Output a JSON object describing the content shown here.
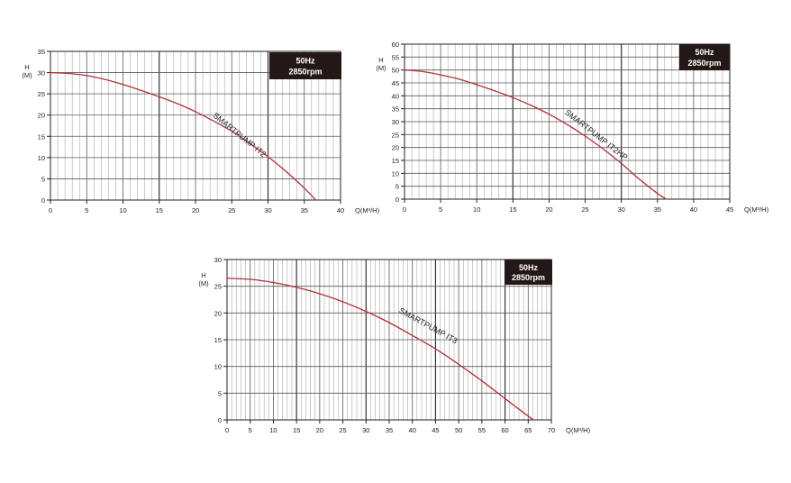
{
  "chart_data": [
    {
      "type": "line",
      "ylabel_line1": "H",
      "ylabel_line2": "(M)",
      "xlabel": "Q(M³/H)",
      "xlim": [
        0,
        40
      ],
      "ylim": [
        0,
        35
      ],
      "xticks": [
        0,
        5,
        10,
        15,
        20,
        25,
        30,
        35,
        40
      ],
      "yticks": [
        0,
        5,
        10,
        15,
        20,
        25,
        30,
        35
      ],
      "badge_line1": "50Hz",
      "badge_line2": "2850rpm",
      "curve_label": "SMARTPUMP IT2",
      "grid": true,
      "series": [
        {
          "x": [
            0,
            2.5,
            5,
            7.5,
            10,
            12.5,
            15,
            17.5,
            20,
            22.5,
            25,
            27.5,
            30,
            32.5,
            35,
            36.6
          ],
          "y": [
            30,
            29.8,
            29.3,
            28.4,
            27.2,
            25.8,
            24.3,
            22.7,
            20.8,
            18.6,
            16.2,
            13.3,
            10.2,
            6.7,
            2.8,
            0
          ]
        }
      ]
    },
    {
      "type": "line",
      "ylabel_line1": "H",
      "ylabel_line2": "(M)",
      "xlabel": "Q(M³/H)",
      "xlim": [
        0,
        45
      ],
      "ylim": [
        0,
        60
      ],
      "xticks": [
        0,
        5,
        10,
        15,
        20,
        25,
        30,
        35,
        40,
        45
      ],
      "yticks": [
        0,
        5,
        10,
        15,
        20,
        25,
        30,
        35,
        40,
        45,
        50,
        55,
        60
      ],
      "badge_line1": "50Hz",
      "badge_line2": "2850rpm",
      "curve_label": "SMARTPUMP IT2HP",
      "grid": true,
      "series": [
        {
          "x": [
            0,
            2.5,
            5,
            7.5,
            10,
            12.5,
            15,
            17.5,
            20,
            22.5,
            25,
            27.5,
            30,
            32.5,
            35,
            36.2
          ],
          "y": [
            50,
            49.4,
            48.1,
            46.5,
            44.3,
            41.9,
            39.3,
            36.3,
            32.9,
            28.9,
            24.4,
            19.4,
            13.8,
            7.7,
            2.2,
            0
          ]
        }
      ]
    },
    {
      "type": "line",
      "ylabel_line1": "H",
      "ylabel_line2": "(M)",
      "xlabel": "Q(M³/H)",
      "xlim": [
        0,
        70
      ],
      "ylim": [
        0,
        30
      ],
      "xticks": [
        0,
        5,
        10,
        15,
        20,
        25,
        30,
        35,
        40,
        45,
        50,
        55,
        60,
        65,
        70
      ],
      "yticks": [
        0,
        5,
        10,
        15,
        20,
        25,
        30
      ],
      "badge_line1": "50Hz",
      "badge_line2": "2850rpm",
      "curve_label": "SMARTPUMP IT3",
      "grid": true,
      "series": [
        {
          "x": [
            0,
            5,
            10,
            15,
            20,
            25,
            30,
            35,
            40,
            45,
            50,
            55,
            60,
            65,
            66.2
          ],
          "y": [
            26.5,
            26.3,
            25.7,
            24.8,
            23.6,
            22.1,
            20.3,
            18.2,
            15.8,
            13.3,
            10.4,
            7.3,
            4,
            0.7,
            0
          ]
        }
      ]
    }
  ]
}
